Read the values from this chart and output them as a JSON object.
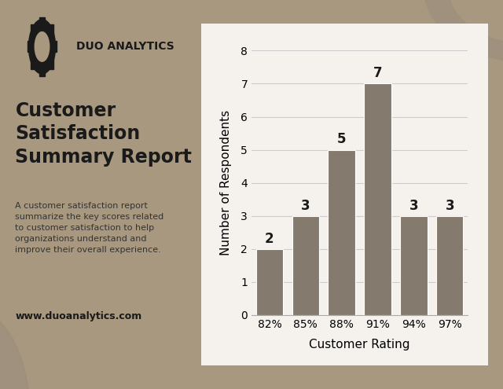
{
  "categories": [
    "82%",
    "85%",
    "88%",
    "91%",
    "94%",
    "97%"
  ],
  "values": [
    2,
    3,
    5,
    7,
    3,
    3
  ],
  "bar_color": "#857A6E",
  "xlabel": "Customer Rating",
  "ylabel": "Number of Respondents",
  "ylim": [
    0,
    8
  ],
  "yticks": [
    0,
    1,
    2,
    3,
    4,
    5,
    6,
    7,
    8
  ],
  "background_color": "#A89880",
  "panel_color": "#F5F2EE",
  "title_text": "Customer\nSatisfaction\nSummary Report",
  "subtitle_text": "A customer satisfaction report\nsummarize the key scores related\nto customer satisfaction to help\norganizations understand and\nimprove their overall experience.",
  "brand_name": "DUO ANALYTICS",
  "website": "www.duoanalytics.com",
  "title_color": "#1a1a1a",
  "label_fontsize": 11,
  "axis_label_fontsize": 10,
  "bar_label_fontsize": 12,
  "grid_color": "#cccccc",
  "deco_circle_color": "#9a8c7e"
}
